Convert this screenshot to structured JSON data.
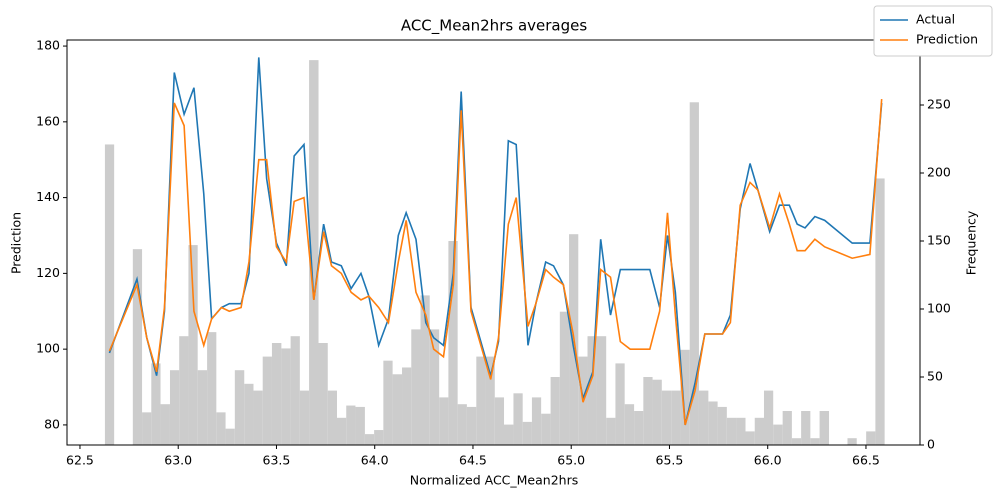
{
  "chart_data": {
    "type": "line",
    "title": "ACC_Mean2hrs averages",
    "x_label": "Normalized ACC_Mean2hrs",
    "y_label": "Prediction",
    "y2_label": "Frequency",
    "legend": "upper right",
    "x": [
      62.65,
      62.79,
      62.84,
      62.89,
      62.93,
      62.98,
      63.03,
      63.08,
      63.13,
      63.17,
      63.22,
      63.26,
      63.32,
      63.36,
      63.41,
      63.45,
      63.5,
      63.55,
      63.59,
      63.64,
      63.69,
      63.74,
      63.78,
      63.83,
      63.88,
      63.93,
      63.97,
      64.02,
      64.07,
      64.12,
      64.16,
      64.21,
      64.26,
      64.3,
      64.35,
      64.4,
      64.44,
      64.49,
      64.59,
      64.63,
      64.68,
      64.72,
      64.78,
      64.82,
      64.87,
      64.91,
      64.96,
      65.01,
      65.06,
      65.11,
      65.15,
      65.2,
      65.25,
      65.3,
      65.35,
      65.4,
      65.45,
      65.49,
      65.53,
      65.58,
      65.63,
      65.68,
      65.77,
      65.81,
      65.86,
      65.91,
      65.95,
      66.01,
      66.06,
      66.11,
      66.15,
      66.19,
      66.24,
      66.29,
      66.43,
      66.52,
      66.58
    ],
    "series": [
      {
        "name": "Actual",
        "color": "#1f77b4",
        "values": [
          99,
          118.5,
          103,
          93,
          110,
          173,
          162,
          169,
          141,
          108,
          111,
          112,
          112,
          120,
          177,
          145,
          128,
          122,
          151,
          154,
          113,
          133,
          123,
          122,
          116,
          120,
          114,
          101,
          108,
          130,
          136,
          129,
          107,
          103,
          101,
          120,
          168,
          111,
          93,
          102,
          155,
          154,
          101,
          112,
          123,
          122,
          117,
          101,
          87,
          94,
          129,
          109,
          121,
          121,
          121,
          121,
          111,
          130,
          115,
          80,
          91,
          104,
          104,
          109,
          137,
          149,
          142,
          131,
          138,
          138,
          133,
          132,
          135,
          134,
          128,
          128,
          165
        ]
      },
      {
        "name": "Prediction",
        "color": "#ff7f0e",
        "values": [
          99.5,
          117,
          103,
          94,
          111,
          165,
          159,
          110,
          101,
          108,
          111,
          110,
          111,
          123,
          150,
          150,
          127,
          123,
          139,
          140,
          113,
          131,
          122,
          120,
          115,
          113,
          114,
          111,
          107,
          123,
          134,
          115,
          109,
          100,
          98,
          117,
          163,
          110,
          92,
          103,
          133,
          140,
          106,
          112,
          121,
          119,
          117,
          104,
          86,
          93,
          121,
          119,
          102,
          100,
          100,
          100,
          110,
          136,
          109,
          80,
          89,
          104,
          104,
          107,
          138,
          144,
          142,
          132,
          141,
          133,
          126,
          126,
          129,
          127,
          124,
          125,
          166
        ]
      }
    ],
    "histogram": {
      "color": "#cccccc",
      "axis": "y2",
      "bins": [
        62.627,
        62.674,
        62.721,
        62.769,
        62.816,
        62.863,
        62.91,
        62.958,
        63.005,
        63.052,
        63.099,
        63.147,
        63.194,
        63.241,
        63.288,
        63.336,
        63.383,
        63.43,
        63.477,
        63.525,
        63.572,
        63.619,
        63.666,
        63.714,
        63.761,
        63.808,
        63.855,
        63.902,
        63.95,
        63.997,
        64.044,
        64.091,
        64.139,
        64.186,
        64.233,
        64.28,
        64.328,
        64.375,
        64.422,
        64.469,
        64.517,
        64.564,
        64.611,
        64.658,
        64.706,
        64.753,
        64.8,
        64.847,
        64.895,
        64.942,
        64.989,
        65.036,
        65.083,
        65.131,
        65.178,
        65.225,
        65.272,
        65.32,
        65.367,
        65.414,
        65.461,
        65.509,
        65.556,
        65.603,
        65.65,
        65.698,
        65.745,
        65.792,
        65.839,
        65.887,
        65.934,
        65.981,
        66.028,
        66.076,
        66.123,
        66.17,
        66.217,
        66.264,
        66.312,
        66.359,
        66.406,
        66.453,
        66.501,
        66.548,
        66.595
      ],
      "counts": [
        221,
        0,
        0,
        144,
        24,
        60,
        30,
        55,
        80,
        147,
        55,
        83,
        24,
        12,
        55,
        45,
        40,
        65,
        75,
        71,
        80,
        40,
        283,
        75,
        40,
        20,
        29,
        28,
        8,
        11,
        62,
        52,
        57,
        85,
        110,
        85,
        35,
        150,
        30,
        28,
        65,
        65,
        35,
        15,
        38,
        17,
        35,
        23,
        50,
        98,
        155,
        65,
        80,
        80,
        20,
        60,
        30,
        25,
        50,
        48,
        40,
        40,
        70,
        252,
        40,
        32,
        28,
        20,
        20,
        10,
        20,
        40,
        15,
        25,
        5,
        25,
        5,
        25,
        0,
        0,
        5,
        0,
        10,
        196
      ]
    },
    "xlim": [
      62.434,
      66.775
    ],
    "ylim": [
      74.7,
      181.6
    ],
    "y2lim": [
      0,
      297.8
    ],
    "xticks": [
      {
        "value": 62.5,
        "label": "62.5"
      },
      {
        "value": 63,
        "label": "63.0"
      },
      {
        "value": 63.5,
        "label": "63.5"
      },
      {
        "value": 64,
        "label": "64.0"
      },
      {
        "value": 64.5,
        "label": "64.5"
      },
      {
        "value": 65,
        "label": "65.0"
      },
      {
        "value": 65.5,
        "label": "65.5"
      },
      {
        "value": 66,
        "label": "66.0"
      },
      {
        "value": 66.5,
        "label": "66.5"
      }
    ],
    "yticks": [
      80,
      100,
      120,
      140,
      160,
      180
    ],
    "y2ticks": [
      0,
      50,
      100,
      150,
      200,
      250
    ]
  }
}
